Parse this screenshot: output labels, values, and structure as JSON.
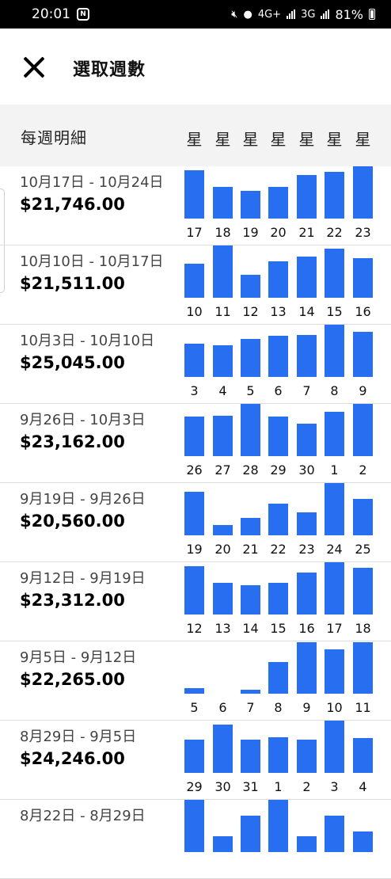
{
  "status_bar": {
    "time": "20:01",
    "network_labels": [
      "4G+",
      "3G"
    ],
    "battery": "81%"
  },
  "header": {
    "title": "選取週數"
  },
  "column_header": {
    "label": "每週明細",
    "day_label": "星"
  },
  "chart_data": {
    "type": "bar",
    "description_scale": "relative daily earnings per week (0-100, estimated from bar heights)",
    "weeks": [
      {
        "range": "10月17日 - 10月24日",
        "amount": "$21,746.00",
        "days": [
          "17",
          "18",
          "19",
          "20",
          "21",
          "22",
          "23"
        ],
        "values": [
          92,
          60,
          53,
          60,
          83,
          90,
          100
        ]
      },
      {
        "range": "10月10日 - 10月17日",
        "amount": "$21,511.00",
        "days": [
          "10",
          "11",
          "12",
          "13",
          "14",
          "15",
          "16"
        ],
        "values": [
          65,
          100,
          44,
          69,
          79,
          94,
          76
        ]
      },
      {
        "range": "10月3日 - 10月10日",
        "amount": "$25,045.00",
        "days": [
          "3",
          "4",
          "5",
          "6",
          "7",
          "8",
          "9"
        ],
        "values": [
          63,
          61,
          72,
          79,
          81,
          100,
          87
        ]
      },
      {
        "range": "9月26日 - 10月3日",
        "amount": "$23,162.00",
        "days": [
          "26",
          "27",
          "28",
          "29",
          "30",
          "1",
          "2"
        ],
        "values": [
          75,
          77,
          100,
          75,
          62,
          85,
          100
        ]
      },
      {
        "range": "9月19日 - 9月26日",
        "amount": "$20,560.00",
        "days": [
          "19",
          "20",
          "21",
          "22",
          "23",
          "24",
          "25"
        ],
        "values": [
          84,
          20,
          33,
          61,
          44,
          100,
          69
        ]
      },
      {
        "range": "9月12日 - 9月19日",
        "amount": "$23,312.00",
        "days": [
          "12",
          "13",
          "14",
          "15",
          "16",
          "17",
          "18"
        ],
        "values": [
          92,
          61,
          56,
          61,
          81,
          100,
          90
        ]
      },
      {
        "range": "9月5日 - 9月12日",
        "amount": "$22,265.00",
        "days": [
          "5",
          "6",
          "7",
          "8",
          "9",
          "10",
          "11"
        ],
        "values": [
          10,
          0,
          7,
          61,
          98,
          85,
          98
        ]
      },
      {
        "range": "8月29日 - 9月5日",
        "amount": "$24,246.00",
        "days": [
          "29",
          "30",
          "31",
          "1",
          "2",
          "3",
          "4"
        ],
        "values": [
          63,
          92,
          64,
          68,
          64,
          100,
          67
        ]
      },
      {
        "range": "8月22日 - 8月29日",
        "amount": "",
        "days": [],
        "values": [
          100,
          30,
          70,
          100,
          30,
          70,
          40
        ]
      }
    ]
  }
}
